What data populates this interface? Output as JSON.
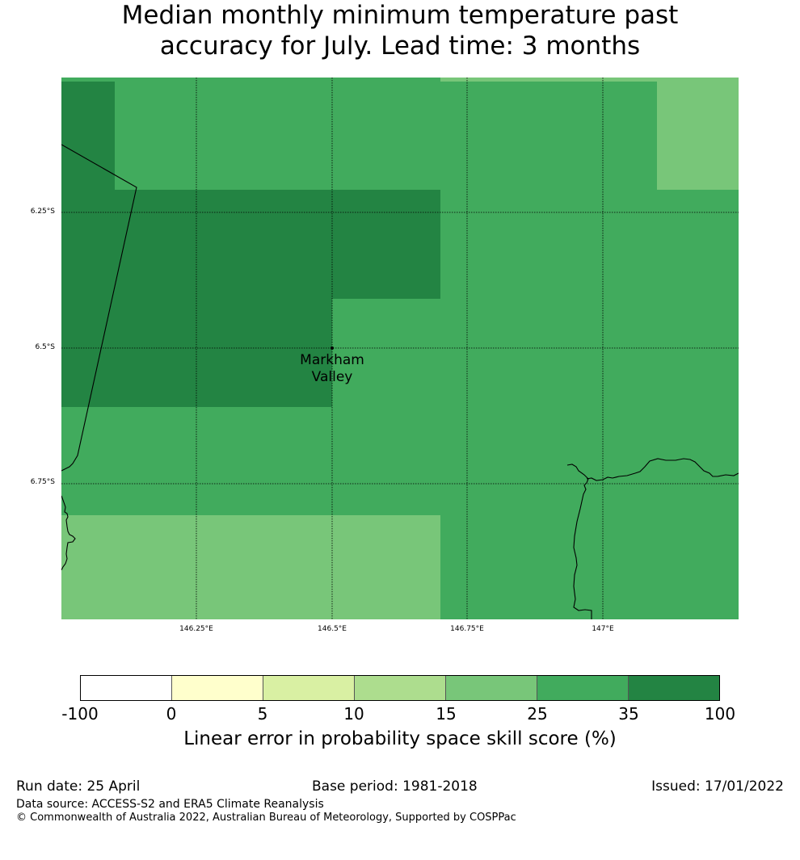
{
  "title_line1": "Median monthly minimum temperature past",
  "title_line2": "accuracy for July. Lead time: 3 months",
  "map": {
    "lat_ticks": [
      "6.25°S",
      "6.5°S",
      "6.75°S"
    ],
    "lon_ticks": [
      "146.25°E",
      "146.5°E",
      "146.75°E",
      "147°E"
    ],
    "place": {
      "line1": "Markham",
      "line2": "Valley"
    },
    "colors": {
      "c15_25": "#78c679",
      "c25_35": "#41ab5d",
      "c35_100": "#238443"
    }
  },
  "colorbar": {
    "colors": [
      "#ffffff",
      "#ffffcc",
      "#d9f0a3",
      "#addd8e",
      "#78c679",
      "#41ab5d",
      "#238443"
    ],
    "ticks": [
      "-100",
      "0",
      "5",
      "10",
      "15",
      "25",
      "35",
      "100"
    ],
    "label": "Linear error in probability space skill score (%)"
  },
  "footer": {
    "run_date": "Run date: 25 April",
    "base_period": "Base period: 1981-2018",
    "issued": "Issued: 17/01/2022",
    "data_source": "Data source: ACCESS-S2 and ERA5 Climate Reanalysis",
    "copyright": "© Commonwealth of Australia 2022, Australian Bureau of Meteorology, Supported by COSPPac"
  }
}
